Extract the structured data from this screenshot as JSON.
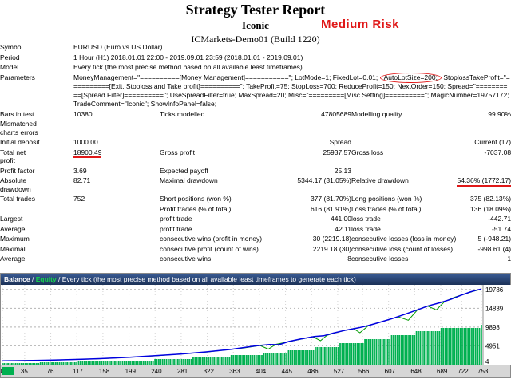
{
  "header": {
    "title": "Strategy Tester Report",
    "ea_name": "Iconic",
    "server": "ICMarkets-Demo01 (Build 1220)",
    "risk_badge": "Medium Risk"
  },
  "colors": {
    "annotation_red": "#e01818",
    "balance_line": "#0000e0",
    "equity_line": "#009a00",
    "lots_bars": "#00b050"
  },
  "stats": {
    "rows": [
      [
        {
          "t": "Symbol",
          "c": "lab"
        },
        {
          "t": "EURUSD (Euro vs US Dollar)",
          "c": "vl",
          "span": 5
        }
      ],
      [
        {
          "t": "Period",
          "c": "lab"
        },
        {
          "t": "1 Hour (H1) 2018.01.01 22:00 - 2019.09.01 23:59 (2018.01.01 - 2019.09.01)",
          "c": "vl",
          "span": 5
        }
      ],
      [
        {
          "t": "Model",
          "c": "lab"
        },
        {
          "t": "Every tick (the most precise method based on all available least timeframes)",
          "c": "vl",
          "span": 5
        }
      ],
      [
        {
          "t": "Parameters",
          "c": "lab"
        },
        {
          "c": "param",
          "span": 5,
          "segs": [
            {
              "t": "MoneyManagement=\"==========[Money Management]===========\"; LotMode=1; FixedLot=0.01; "
            },
            {
              "t": "AutoLotSize=200;",
              "mark": "circle"
            },
            {
              "t": " StoplossTakeProfit=\"==========[Exit. Stoploss and Take profit]==========\"; TakeProfit=75; StopLoss=700; ReduceProfit=150; NextOrder=150; Spread=\"==========[Spread Filter]==========\"; UseSpreadFilter=true; MaxSpread=20; Misc=\"=========[Misc Setting]==========\"; MagicNumber=19757172; TradeComment=\"Iconic\"; ShowInfoPanel=false;"
            }
          ]
        }
      ],
      [
        {
          "t": "Bars in test",
          "c": "lab"
        },
        {
          "t": "10380",
          "c": "vl"
        },
        {
          "t": "Ticks modelled",
          "c": "lab2"
        },
        {
          "t": "47805689",
          "c": "vr"
        },
        {
          "t": "Modelling quality",
          "c": "lab2"
        },
        {
          "t": "99.90%",
          "c": "vr"
        }
      ],
      [
        {
          "t": "Mismatched\ncharts errors",
          "c": "lab"
        },
        {
          "t": "",
          "c": "vl",
          "span": 5
        }
      ],
      [
        {
          "t": "Initial deposit",
          "c": "lab"
        },
        {
          "t": "1000.00",
          "c": "vl"
        },
        {
          "t": "",
          "c": "lab2"
        },
        {
          "t": "Spread",
          "c": "vr"
        },
        {
          "t": "Current (17)",
          "c": "vr",
          "span": 2
        }
      ],
      [
        {
          "t": "Total net\nprofit",
          "c": "lab"
        },
        {
          "t": "18900.49",
          "c": "vl",
          "mark": "underline"
        },
        {
          "t": "Gross profit",
          "c": "lab2"
        },
        {
          "t": "25937.57",
          "c": "vr"
        },
        {
          "t": "Gross loss",
          "c": "lab2"
        },
        {
          "t": "-7037.08",
          "c": "vr"
        }
      ],
      [
        {
          "t": "Profit factor",
          "c": "lab"
        },
        {
          "t": "3.69",
          "c": "vl"
        },
        {
          "t": "Expected payoff",
          "c": "lab2"
        },
        {
          "t": "25.13",
          "c": "vr"
        },
        {
          "t": "",
          "c": "lab2"
        },
        {
          "t": "",
          "c": "vr"
        }
      ],
      [
        {
          "t": "Absolute\ndrawdown",
          "c": "lab"
        },
        {
          "t": "82.71",
          "c": "vl"
        },
        {
          "t": "Maximal drawdown",
          "c": "lab2"
        },
        {
          "t": "5344.17 (31.05%)",
          "c": "vr"
        },
        {
          "t": "Relative drawdown",
          "c": "lab2"
        },
        {
          "t": "54.36% (1772.17)",
          "c": "vr",
          "mark": "underline"
        }
      ],
      [
        {
          "t": "Total trades",
          "c": "lab"
        },
        {
          "t": "752",
          "c": "vl"
        },
        {
          "t": "Short positions (won %)",
          "c": "lab2"
        },
        {
          "t": "377 (81.70%)",
          "c": "vr"
        },
        {
          "t": "Long positions (won %)",
          "c": "lab2"
        },
        {
          "t": "375 (82.13%)",
          "c": "vr"
        }
      ],
      [
        {
          "t": "",
          "c": "lab"
        },
        {
          "t": "",
          "c": "vl"
        },
        {
          "t": "Profit trades (% of total)",
          "c": "lab2"
        },
        {
          "t": "616 (81.91%)",
          "c": "vr"
        },
        {
          "t": "Loss trades (% of total)",
          "c": "lab2"
        },
        {
          "t": "136 (18.09%)",
          "c": "vr"
        }
      ],
      [
        {
          "t": "Largest",
          "c": "lab"
        },
        {
          "t": "",
          "c": "vl"
        },
        {
          "t": "profit trade",
          "c": "lab2"
        },
        {
          "t": "441.00",
          "c": "vr"
        },
        {
          "t": "loss trade",
          "c": "lab2"
        },
        {
          "t": "-442.71",
          "c": "vr"
        }
      ],
      [
        {
          "t": "Average",
          "c": "lab"
        },
        {
          "t": "",
          "c": "vl"
        },
        {
          "t": "profit trade",
          "c": "lab2"
        },
        {
          "t": "42.11",
          "c": "vr"
        },
        {
          "t": "loss trade",
          "c": "lab2"
        },
        {
          "t": "-51.74",
          "c": "vr"
        }
      ],
      [
        {
          "t": "Maximum",
          "c": "lab"
        },
        {
          "t": "",
          "c": "vl"
        },
        {
          "t": "consecutive wins (profit in money)",
          "c": "lab2"
        },
        {
          "t": "30 (2219.18)",
          "c": "vr"
        },
        {
          "t": "consecutive losses (loss in money)",
          "c": "lab2"
        },
        {
          "t": "5 (-948.21)",
          "c": "vr"
        }
      ],
      [
        {
          "t": "Maximal",
          "c": "lab"
        },
        {
          "t": "",
          "c": "vl"
        },
        {
          "t": "consecutive profit (count of wins)",
          "c": "lab2"
        },
        {
          "t": "2219.18 (30)",
          "c": "vr"
        },
        {
          "t": "consecutive loss (count of losses)",
          "c": "lab2"
        },
        {
          "t": "-998.61 (4)",
          "c": "vr"
        }
      ],
      [
        {
          "t": "Average",
          "c": "lab"
        },
        {
          "t": "",
          "c": "vl"
        },
        {
          "t": "consecutive wins",
          "c": "lab2"
        },
        {
          "t": "8",
          "c": "vr"
        },
        {
          "t": "consecutive losses",
          "c": "lab2"
        },
        {
          "t": "1",
          "c": "vr"
        }
      ]
    ]
  },
  "chart": {
    "balance_label": "Balance",
    "sep": " / ",
    "equity_label": "Equity",
    "mode_text": " / Every tick (the most precise method based on all available least timeframes to generate each tick)"
  },
  "chart_data": {
    "type": "line",
    "title": "Balance / Equity",
    "x_max": 753,
    "y_max": 21000,
    "x_ticks": [
      0,
      35,
      76,
      117,
      158,
      199,
      240,
      281,
      322,
      363,
      404,
      445,
      486,
      527,
      566,
      607,
      648,
      689,
      722,
      753
    ],
    "y_ticks": [
      4,
      4951,
      9898,
      14839,
      19786
    ],
    "legend_position": "top",
    "grid": true,
    "series": [
      {
        "name": "Balance",
        "color": "#0000e0",
        "points": [
          [
            0,
            1000
          ],
          [
            40,
            1080
          ],
          [
            80,
            1200
          ],
          [
            120,
            1380
          ],
          [
            160,
            1620
          ],
          [
            200,
            1950
          ],
          [
            240,
            2350
          ],
          [
            280,
            2800
          ],
          [
            320,
            3350
          ],
          [
            360,
            4050
          ],
          [
            400,
            5000
          ],
          [
            420,
            5300
          ],
          [
            435,
            5250
          ],
          [
            450,
            6100
          ],
          [
            470,
            6800
          ],
          [
            490,
            7400
          ],
          [
            505,
            7600
          ],
          [
            520,
            8300
          ],
          [
            540,
            9100
          ],
          [
            560,
            9700
          ],
          [
            575,
            10300
          ],
          [
            590,
            11000
          ],
          [
            610,
            12000
          ],
          [
            630,
            13100
          ],
          [
            650,
            14300
          ],
          [
            670,
            15500
          ],
          [
            690,
            16400
          ],
          [
            705,
            17200
          ],
          [
            720,
            18200
          ],
          [
            735,
            19100
          ],
          [
            745,
            19600
          ],
          [
            753,
            19900
          ]
        ]
      },
      {
        "name": "Equity",
        "color": "#009a00",
        "points": [
          [
            0,
            1000
          ],
          [
            80,
            1180
          ],
          [
            160,
            1600
          ],
          [
            240,
            2320
          ],
          [
            320,
            3300
          ],
          [
            380,
            4400
          ],
          [
            405,
            5050
          ],
          [
            418,
            4100
          ],
          [
            430,
            5350
          ],
          [
            450,
            6050
          ],
          [
            470,
            6750
          ],
          [
            488,
            7350
          ],
          [
            500,
            6300
          ],
          [
            510,
            7700
          ],
          [
            530,
            8700
          ],
          [
            552,
            9500
          ],
          [
            562,
            8400
          ],
          [
            575,
            10250
          ],
          [
            600,
            11500
          ],
          [
            622,
            12600
          ],
          [
            638,
            11700
          ],
          [
            652,
            14350
          ],
          [
            668,
            15450
          ],
          [
            682,
            14400
          ],
          [
            695,
            16600
          ],
          [
            710,
            17700
          ],
          [
            725,
            18500
          ],
          [
            740,
            19300
          ],
          [
            753,
            19850
          ]
        ]
      },
      {
        "name": "Lots",
        "type": "bars",
        "color": "#00b050",
        "profile": [
          [
            0,
            2
          ],
          [
            60,
            3
          ],
          [
            120,
            4
          ],
          [
            180,
            5
          ],
          [
            240,
            7
          ],
          [
            300,
            9
          ],
          [
            360,
            12
          ],
          [
            410,
            15
          ],
          [
            450,
            18
          ],
          [
            490,
            22
          ],
          [
            530,
            27
          ],
          [
            570,
            32
          ],
          [
            610,
            37
          ],
          [
            650,
            42
          ],
          [
            690,
            46
          ],
          [
            753,
            50
          ]
        ]
      }
    ]
  }
}
